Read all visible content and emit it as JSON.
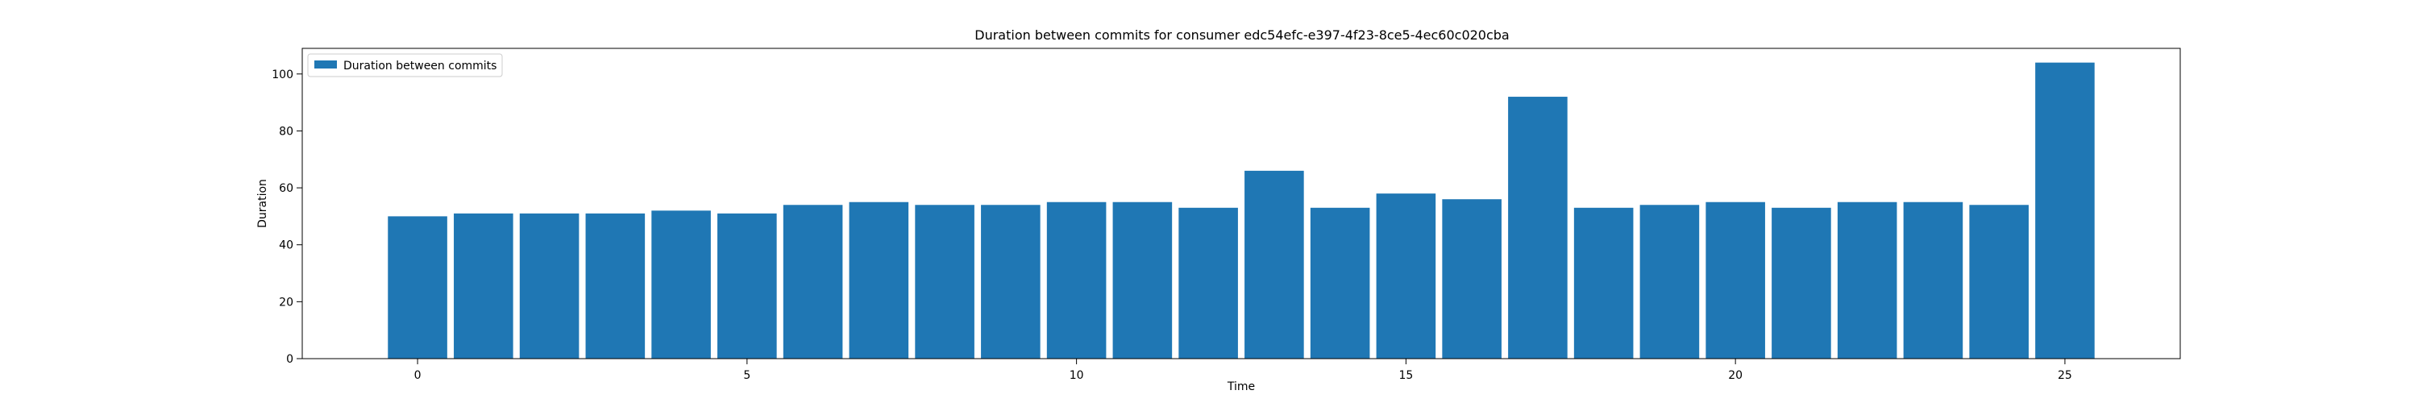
{
  "chart_data": {
    "type": "bar",
    "title": "Duration between commits for consumer edc54efc-e397-4f23-8ce5-4ec60c020cba",
    "xlabel": "Time",
    "ylabel": "Duration",
    "x": [
      0,
      1,
      2,
      3,
      4,
      5,
      6,
      7,
      8,
      9,
      10,
      11,
      12,
      13,
      14,
      15,
      16,
      17,
      18,
      19,
      20,
      21,
      22,
      23,
      24,
      25
    ],
    "series": [
      {
        "name": "Duration between commits",
        "color": "#1f77b4",
        "values": [
          50,
          51,
          51,
          51,
          52,
          51,
          54,
          55,
          54,
          54,
          55,
          55,
          53,
          66,
          53,
          58,
          56,
          92,
          53,
          54,
          55,
          53,
          55,
          55,
          54,
          104
        ]
      }
    ],
    "xlim": [
      -1.75,
      26.75
    ],
    "ylim": [
      0,
      109
    ],
    "xticks": [
      0,
      5,
      10,
      15,
      20,
      25
    ],
    "yticks": [
      0,
      20,
      40,
      60,
      80,
      100
    ],
    "grid": false,
    "legend_position": "upper left"
  }
}
